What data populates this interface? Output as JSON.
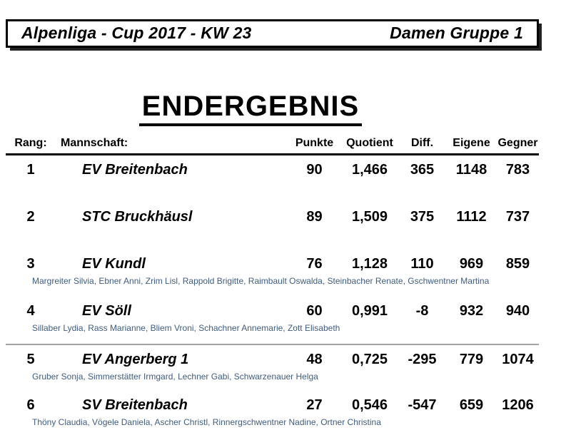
{
  "banner": {
    "left": "Alpenliga - Cup 2017 - KW 23",
    "right": "Damen Gruppe 1"
  },
  "title": "ENDERGEBNIS",
  "table": {
    "columns": {
      "rank": "Rang:",
      "team": "Mannschaft:",
      "punkte": "Punkte",
      "quotient": "Quotient",
      "diff": "Diff.",
      "eigene": "Eigene",
      "gegner": "Gegner"
    },
    "rows": [
      {
        "rank": "1",
        "team": "EV Breitenbach",
        "punkte": "90",
        "quotient": "1,466",
        "diff": "365",
        "eigene": "1148",
        "gegner": "783",
        "players": ""
      },
      {
        "rank": "2",
        "team": "STC Bruckhäusl",
        "punkte": "89",
        "quotient": "1,509",
        "diff": "375",
        "eigene": "1112",
        "gegner": "737",
        "players": ""
      },
      {
        "rank": "3",
        "team": "EV Kundl",
        "punkte": "76",
        "quotient": "1,128",
        "diff": "110",
        "eigene": "969",
        "gegner": "859",
        "players": "Margreiter Silvia, Ebner Anni, Zrim Lisl, Rappold Brigitte, Raimbault Oswalda, Steinbacher Renate, Gschwentner Martina"
      },
      {
        "rank": "4",
        "team": "EV Söll",
        "punkte": "60",
        "quotient": "0,991",
        "diff": "-8",
        "eigene": "932",
        "gegner": "940",
        "players": "Sillaber Lydia, Rass Marianne, Bliem Vroni, Schachner Annemarie, Zott Elisabeth"
      },
      {
        "rank": "5",
        "team": "EV Angerberg 1",
        "punkte": "48",
        "quotient": "0,725",
        "diff": "-295",
        "eigene": "779",
        "gegner": "1074",
        "players": "Gruber Sonja, Simmerstätter Irmgard, Lechner Gabi, Schwarzenauer Helga"
      },
      {
        "rank": "6",
        "team": "SV Breitenbach",
        "punkte": "27",
        "quotient": "0,546",
        "diff": "-547",
        "eigene": "659",
        "gegner": "1206",
        "players": "Thöny Claudia, Vögele Daniela, Ascher Christl, Rinnergschwentner Nadine, Ortner Christina"
      }
    ]
  },
  "colors": {
    "players_text": "#3e5c82",
    "divider": "#a3a3a3",
    "border": "#000000"
  }
}
